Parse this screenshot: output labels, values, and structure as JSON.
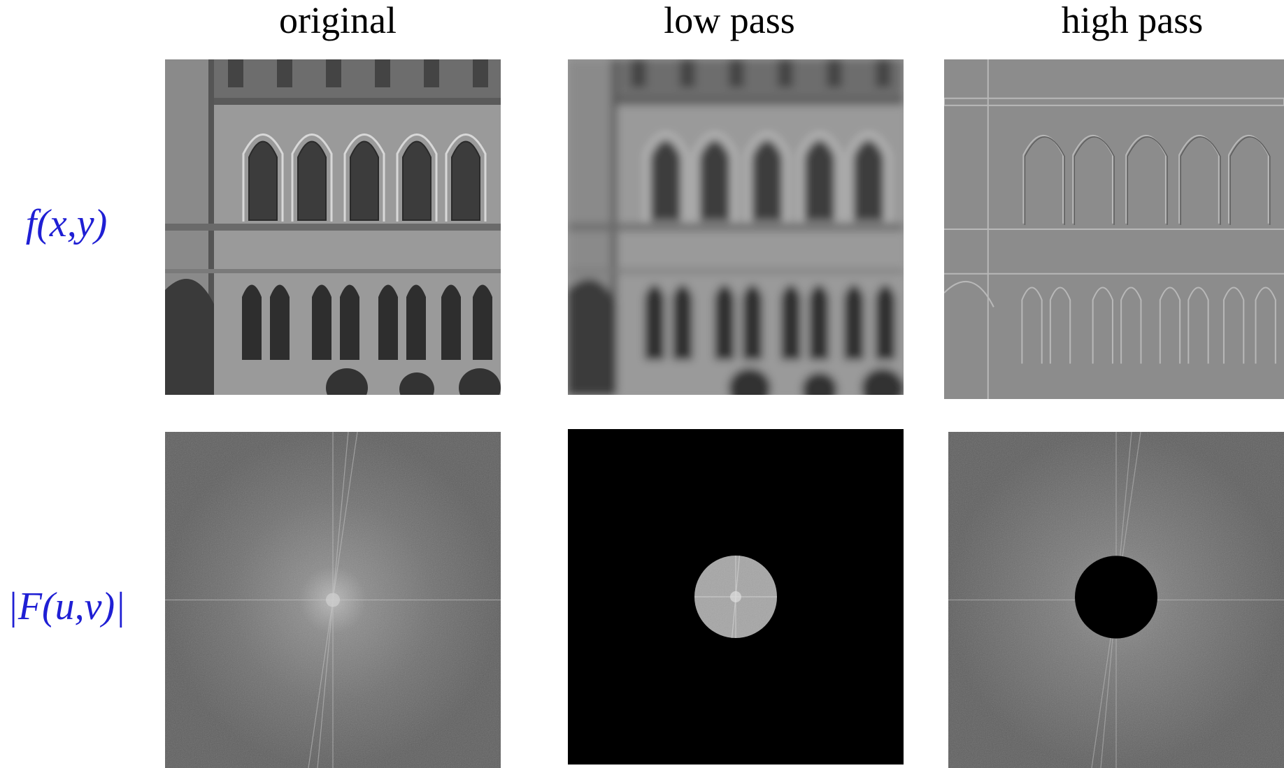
{
  "columns": {
    "original": "original",
    "low_pass": "low pass",
    "high_pass": "high pass"
  },
  "rows": {
    "spatial": "f(x,y)",
    "frequency": "|F(u,v)|"
  },
  "panels": {
    "spatial_original": "building facade, grayscale",
    "spatial_low_pass": "building facade, blurred",
    "spatial_high_pass": "building facade, edges on gray",
    "freq_original": "full Fourier magnitude spectrum",
    "freq_low_pass": "spectrum with only central disc kept",
    "freq_high_pass": "spectrum with central disc removed"
  },
  "colors": {
    "label_blue": "#1f1fd4",
    "spectrum_gray": "#6e6e6e",
    "mask_black": "#000000"
  }
}
